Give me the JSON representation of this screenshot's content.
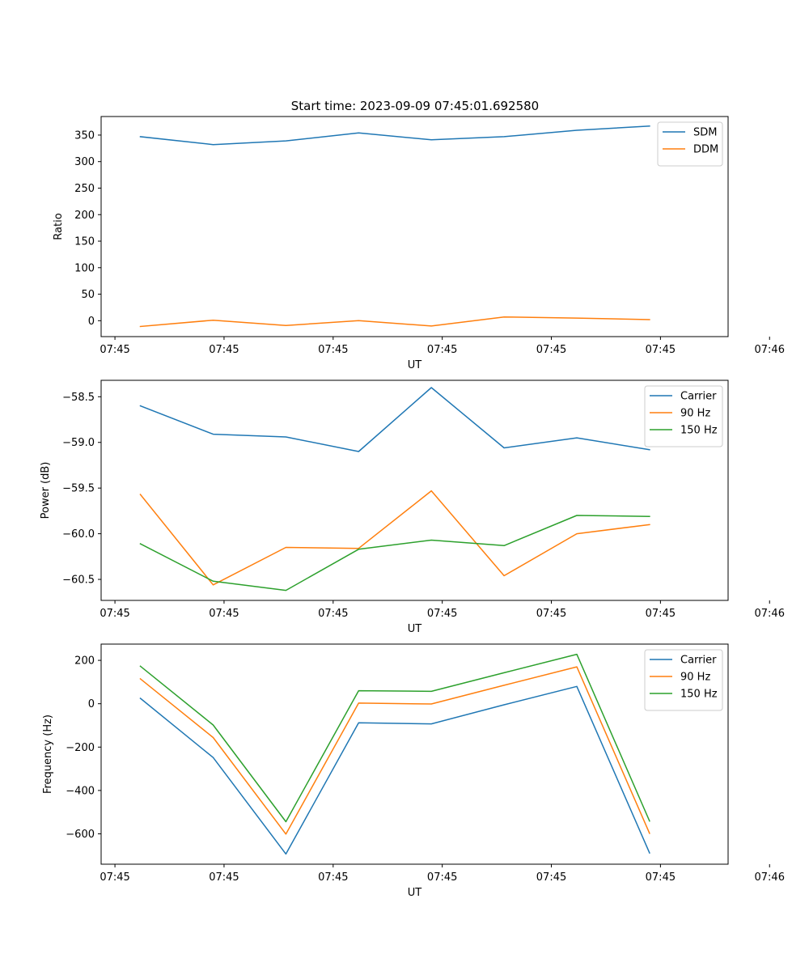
{
  "figure": {
    "title": "Start time: 2023-09-09 07:45:01.692580"
  },
  "chart_data": [
    {
      "type": "line",
      "title": "Start time: 2023-09-09 07:45:01.692580",
      "xlabel": "UT",
      "ylabel": "Ratio",
      "xlim": [
        -0.54,
        8.08
      ],
      "ylim": [
        -30,
        385
      ],
      "xticks": [
        -0.35,
        1.15,
        2.65,
        4.15,
        5.65,
        7.15,
        8.65
      ],
      "xtick_labels": [
        "07:45",
        "07:45",
        "07:45",
        "07:45",
        "07:45",
        "07:45",
        "07:46"
      ],
      "yticks": [
        0,
        50,
        100,
        150,
        200,
        250,
        300,
        350
      ],
      "ytick_labels": [
        "0",
        "50",
        "100",
        "150",
        "200",
        "250",
        "300",
        "350"
      ],
      "legend": "top-right",
      "x": [
        0,
        1,
        2,
        3,
        4,
        5,
        6,
        7
      ],
      "series": [
        {
          "name": "SDM",
          "color": "#1f77b4",
          "values": [
            347,
            332,
            339,
            354,
            341,
            347,
            359,
            367
          ]
        },
        {
          "name": "DDM",
          "color": "#ff7f0e",
          "values": [
            -11,
            1,
            -9,
            0,
            -10,
            7,
            5,
            2
          ]
        }
      ]
    },
    {
      "type": "line",
      "title": "",
      "xlabel": "UT",
      "ylabel": "Power (dB)",
      "xlim": [
        -0.54,
        8.08
      ],
      "ylim": [
        -60.73,
        -58.32
      ],
      "xticks": [
        -0.35,
        1.15,
        2.65,
        4.15,
        5.65,
        7.15,
        8.65
      ],
      "xtick_labels": [
        "07:45",
        "07:45",
        "07:45",
        "07:45",
        "07:45",
        "07:45",
        "07:46"
      ],
      "yticks": [
        -60.5,
        -60.0,
        -59.5,
        -59.0,
        -58.5
      ],
      "ytick_labels": [
        "−60.5",
        "−60.0",
        "−59.5",
        "−59.0",
        "−58.5"
      ],
      "legend": "top-right",
      "x": [
        0,
        1,
        2,
        3,
        4,
        5,
        6,
        7
      ],
      "series": [
        {
          "name": "Carrier",
          "color": "#1f77b4",
          "values": [
            -58.6,
            -58.91,
            -58.94,
            -59.1,
            -58.4,
            -59.06,
            -58.95,
            -59.08
          ]
        },
        {
          "name": "90 Hz",
          "color": "#ff7f0e",
          "values": [
            -59.57,
            -60.56,
            -60.15,
            -60.16,
            -59.53,
            -60.46,
            -60.0,
            -59.9
          ]
        },
        {
          "name": "150 Hz",
          "color": "#2ca02c",
          "values": [
            -60.11,
            -60.52,
            -60.62,
            -60.17,
            -60.07,
            -60.13,
            -59.8,
            -59.81
          ]
        }
      ]
    },
    {
      "type": "line",
      "title": "",
      "xlabel": "UT",
      "ylabel": "Frequency (Hz)",
      "xlim": [
        -0.54,
        8.08
      ],
      "ylim": [
        -740,
        275
      ],
      "xticks": [
        -0.35,
        1.15,
        2.65,
        4.15,
        5.65,
        7.15,
        8.65
      ],
      "xtick_labels": [
        "07:45",
        "07:45",
        "07:45",
        "07:45",
        "07:45",
        "07:45",
        "07:46"
      ],
      "yticks": [
        -600,
        -400,
        -200,
        0,
        200
      ],
      "ytick_labels": [
        "−600",
        "−400",
        "−200",
        "0",
        "200"
      ],
      "legend": "top-right",
      "x": [
        0,
        1,
        2,
        3,
        4,
        5,
        6,
        7
      ],
      "series": [
        {
          "name": "Carrier",
          "color": "#1f77b4",
          "values": [
            25,
            -248,
            -693,
            -88,
            -93,
            -5,
            80,
            -688
          ]
        },
        {
          "name": "90 Hz",
          "color": "#ff7f0e",
          "values": [
            115,
            -156,
            -601,
            3,
            -1,
            85,
            170,
            -598
          ]
        },
        {
          "name": "150 Hz",
          "color": "#2ca02c",
          "values": [
            173,
            -98,
            -544,
            60,
            57,
            143,
            228,
            -541
          ]
        }
      ]
    }
  ]
}
